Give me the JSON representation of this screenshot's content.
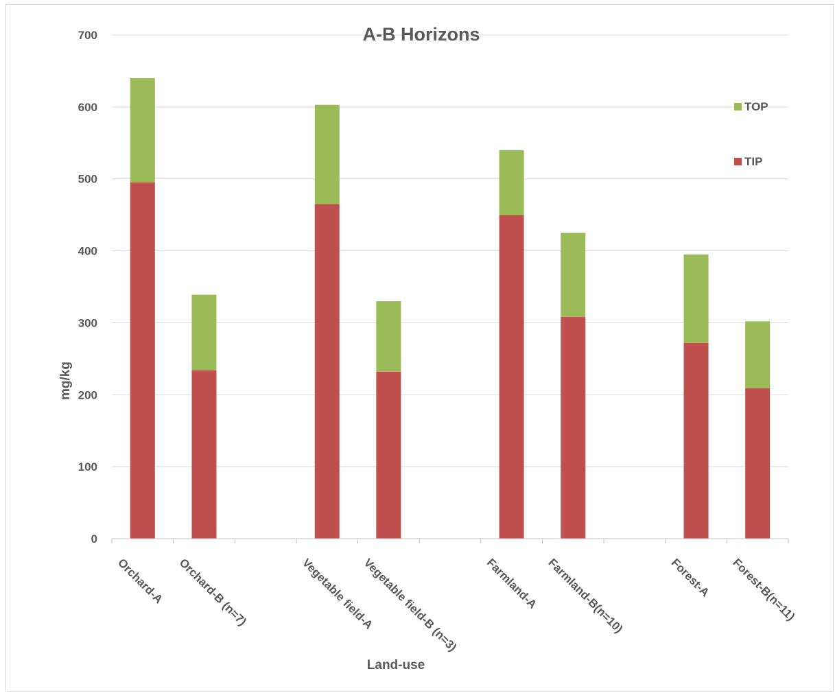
{
  "chart_data": {
    "type": "bar",
    "stacked": true,
    "title": "A-B Horizons",
    "xlabel": "Land-use",
    "ylabel": "mg/kg",
    "ylim": [
      0,
      700
    ],
    "yticks": [
      0,
      100,
      200,
      300,
      400,
      500,
      600,
      700
    ],
    "grid": true,
    "legend_position": "right",
    "slots": [
      "Orchard-A",
      "Orchard-B (n=7)",
      "",
      "Vegetable field-A",
      "Vegetable field-B (n=3)",
      "",
      "Farmland-A",
      "Farmland-B(n=10)",
      "",
      "Forest-A",
      "Forest-B(n=11)"
    ],
    "categories": [
      "Orchard-A",
      "Orchard-B (n=7)",
      "Vegetable field-A",
      "Vegetable field-B (n=3)",
      "Farmland-A",
      "Farmland-B(n=10)",
      "Forest-A",
      "Forest-B(n=11)"
    ],
    "series": [
      {
        "name": "TIP",
        "color": "#c0504d",
        "values": [
          495,
          234,
          465,
          232,
          450,
          308,
          272,
          209
        ]
      },
      {
        "name": "TOP",
        "color": "#9bbb59",
        "values": [
          145,
          105,
          138,
          98,
          90,
          117,
          123,
          93
        ]
      }
    ]
  }
}
